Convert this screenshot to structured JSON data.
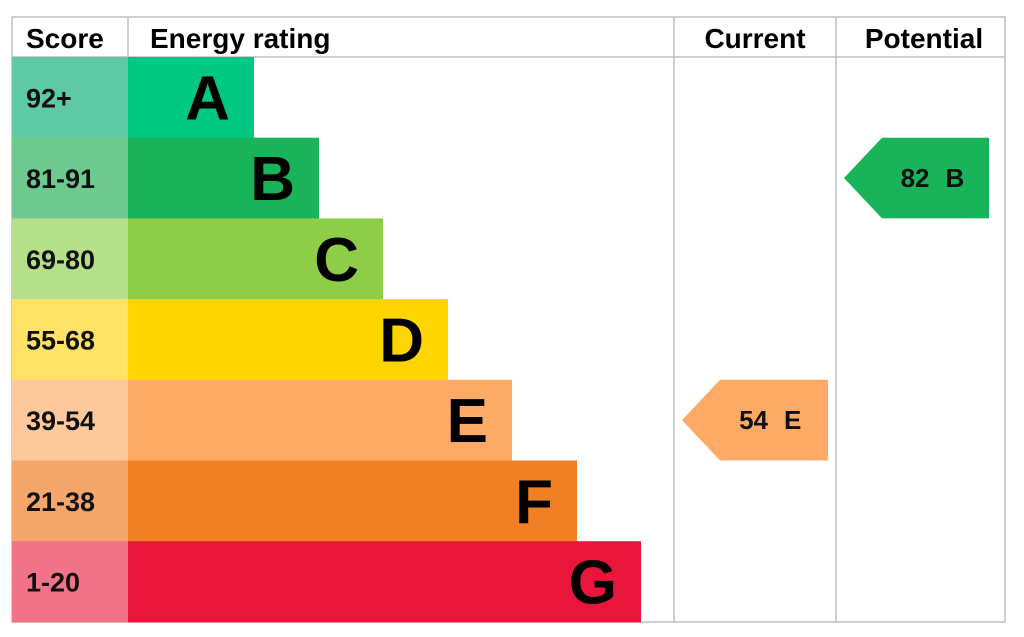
{
  "chart_data": {
    "type": "bar",
    "headers": {
      "score": "Score",
      "rating": "Energy rating",
      "current": "Current",
      "potential": "Potential"
    },
    "bands": [
      {
        "range": "92+",
        "letter": "A",
        "color": "#00c781",
        "score_bg": "#5ec9a4"
      },
      {
        "range": "81-91",
        "letter": "B",
        "color": "#19b459",
        "score_bg": "#6dc98d"
      },
      {
        "range": "69-80",
        "letter": "C",
        "color": "#8dce46",
        "score_bg": "#b4e08a"
      },
      {
        "range": "55-68",
        "letter": "D",
        "color": "#ffd500",
        "score_bg": "#ffe266"
      },
      {
        "range": "39-54",
        "letter": "E",
        "color": "#fcaa65",
        "score_bg": "#fdc89c"
      },
      {
        "range": "21-38",
        "letter": "F",
        "color": "#ef8023",
        "score_bg": "#f4a66b"
      },
      {
        "range": "1-20",
        "letter": "G",
        "color": "#e9153b",
        "score_bg": "#f07388"
      }
    ],
    "current": {
      "value": 54,
      "letter": "E",
      "color": "#fcaa65"
    },
    "potential": {
      "value": 82,
      "letter": "B",
      "color": "#19b459"
    }
  }
}
